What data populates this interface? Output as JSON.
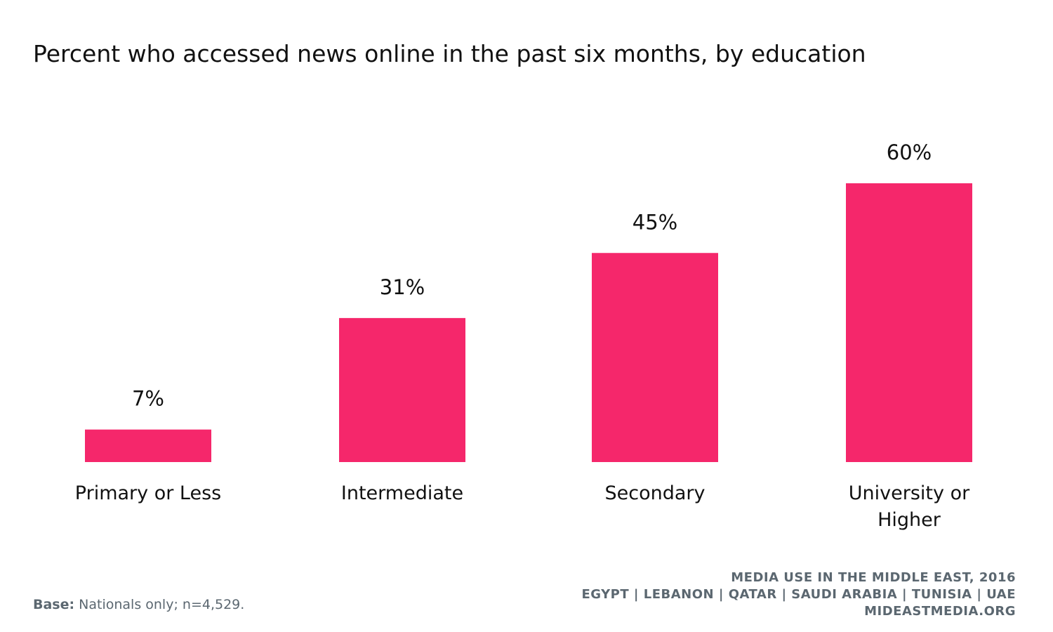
{
  "chart_data": {
    "type": "bar",
    "title": "Percent who accessed news online in the past six months, by education",
    "categories": [
      "Primary or Less",
      "Intermediate",
      "Secondary",
      "University or Higher"
    ],
    "values": [
      7,
      31,
      45,
      60
    ],
    "value_labels": [
      "7%",
      "31%",
      "45%",
      "60%"
    ],
    "color": "#f5276b",
    "footer": {
      "base_label": "Base:",
      "base_text": "Nationals only; n=4,529."
    },
    "source": [
      "MEDIA USE IN THE MIDDLE EAST, 2016",
      "EGYPT | LEBANON | QATAR | SAUDI ARABIA | TUNISIA | UAE",
      "MIDEASTMEDIA.ORG"
    ]
  }
}
